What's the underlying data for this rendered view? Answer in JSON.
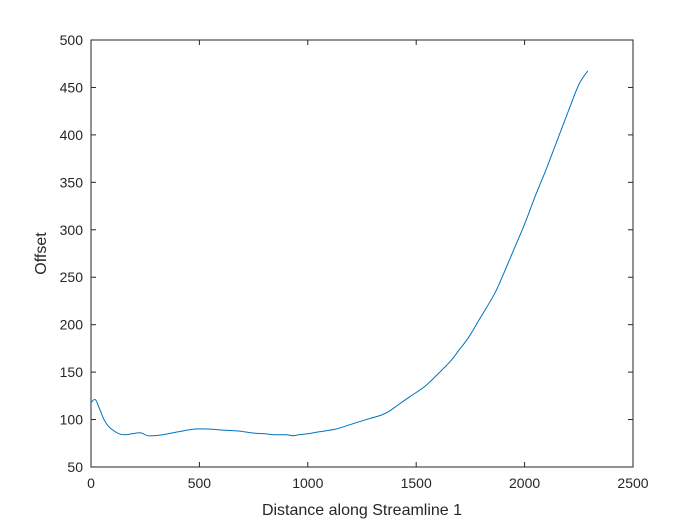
{
  "chart_data": {
    "type": "line",
    "title": "",
    "xlabel": "Distance along Streamline 1",
    "ylabel": "Offset",
    "xlim": [
      0,
      2500
    ],
    "ylim": [
      50,
      500
    ],
    "xticks": [
      0,
      500,
      1000,
      1500,
      2000,
      2500
    ],
    "xtick_labels": [
      "0",
      "500",
      "1000",
      "1500",
      "2000",
      "2500"
    ],
    "yticks": [
      50,
      100,
      150,
      200,
      250,
      300,
      350,
      400,
      450,
      500
    ],
    "ytick_labels": [
      "50",
      "100",
      "150",
      "200",
      "250",
      "300",
      "350",
      "400",
      "450",
      "500"
    ],
    "grid": false,
    "legend": "none",
    "colors": {
      "line": "#0072BD",
      "axes": "#262626",
      "background": "#ffffff"
    },
    "series": [
      {
        "x": [
          0,
          20,
          40,
          60,
          80,
          100,
          130,
          160,
          190,
          230,
          260,
          290,
          330,
          400,
          480,
          540,
          600,
          680,
          740,
          800,
          850,
          900,
          930,
          960,
          1000,
          1050,
          1130,
          1200,
          1270,
          1330,
          1370,
          1420,
          1470,
          1540,
          1600,
          1660,
          1700,
          1740,
          1790,
          1860,
          1900,
          1950,
          2000,
          2050,
          2100,
          2150,
          2200,
          2250,
          2290
        ],
        "y": [
          118,
          121,
          111,
          100,
          93,
          89,
          85,
          84,
          85,
          86,
          83,
          83,
          84,
          87,
          90,
          90,
          89,
          88,
          86,
          85,
          84,
          84,
          83,
          84,
          85,
          87,
          90,
          95,
          100,
          104,
          108,
          116,
          124,
          135,
          148,
          162,
          174,
          186,
          205,
          232,
          252,
          279,
          306,
          336,
          364,
          394,
          424,
          453,
          467
        ]
      }
    ]
  }
}
